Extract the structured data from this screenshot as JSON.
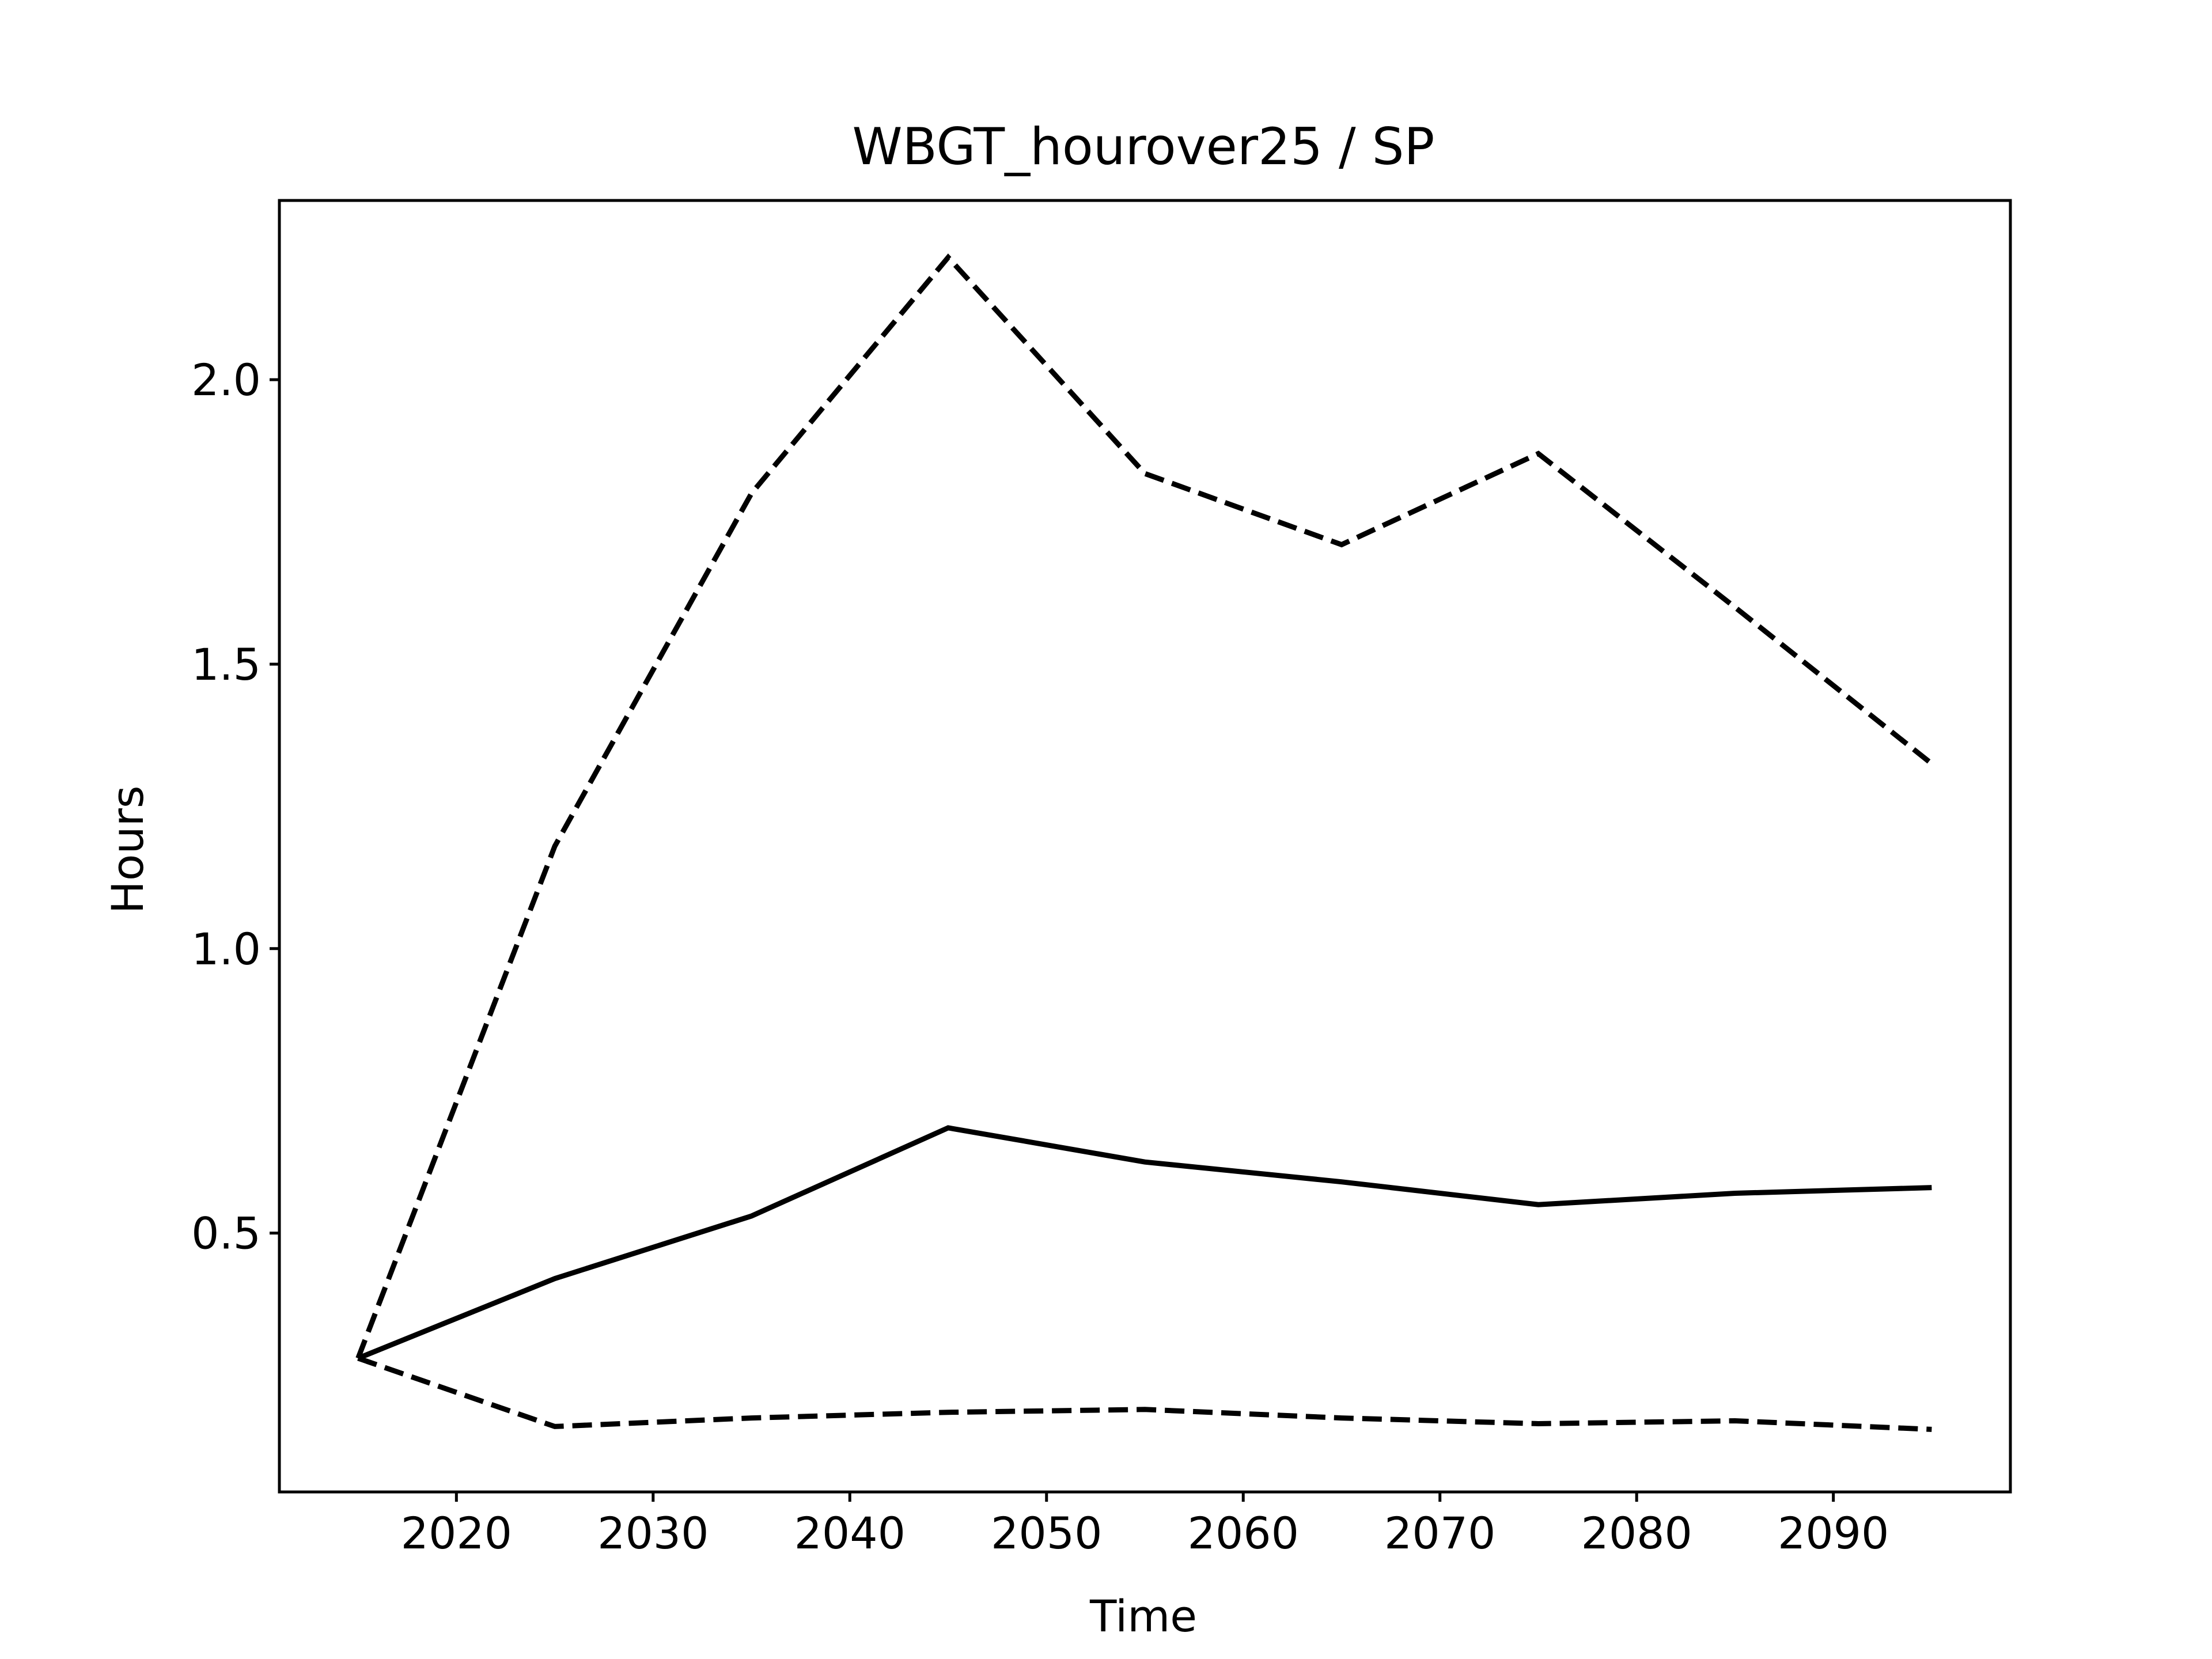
{
  "chart_data": {
    "type": "line",
    "title": "WBGT_hourover25 / SP",
    "xlabel": "Time",
    "ylabel": "Hours",
    "xlim": [
      2011.0,
      2099.0
    ],
    "ylim": [
      0.045,
      2.315
    ],
    "x_ticks": [
      2020,
      2030,
      2040,
      2050,
      2060,
      2070,
      2080,
      2090
    ],
    "y_ticks": [
      0.5,
      1.0,
      1.5,
      2.0
    ],
    "x_tick_labels": [
      "2020",
      "2030",
      "2040",
      "2050",
      "2060",
      "2070",
      "2080",
      "2090"
    ],
    "y_tick_labels": [
      "0.5",
      "1.0",
      "1.5",
      "2.0"
    ],
    "grid": false,
    "legend": false,
    "x": [
      2015,
      2025,
      2035,
      2045,
      2055,
      2065,
      2075,
      2085,
      2095
    ],
    "series": [
      {
        "style": "solid",
        "color": "#000000",
        "values": [
          0.28,
          0.42,
          0.53,
          0.685,
          0.625,
          0.59,
          0.55,
          0.57,
          0.58
        ]
      },
      {
        "style": "dashed",
        "color": "#000000",
        "values": [
          0.28,
          1.18,
          1.8,
          2.215,
          1.835,
          1.71,
          1.87,
          1.6,
          1.325
        ]
      },
      {
        "style": "dashed",
        "color": "#000000",
        "values": [
          0.28,
          0.16,
          0.175,
          0.185,
          0.19,
          0.175,
          0.165,
          0.17,
          0.155
        ]
      }
    ]
  }
}
